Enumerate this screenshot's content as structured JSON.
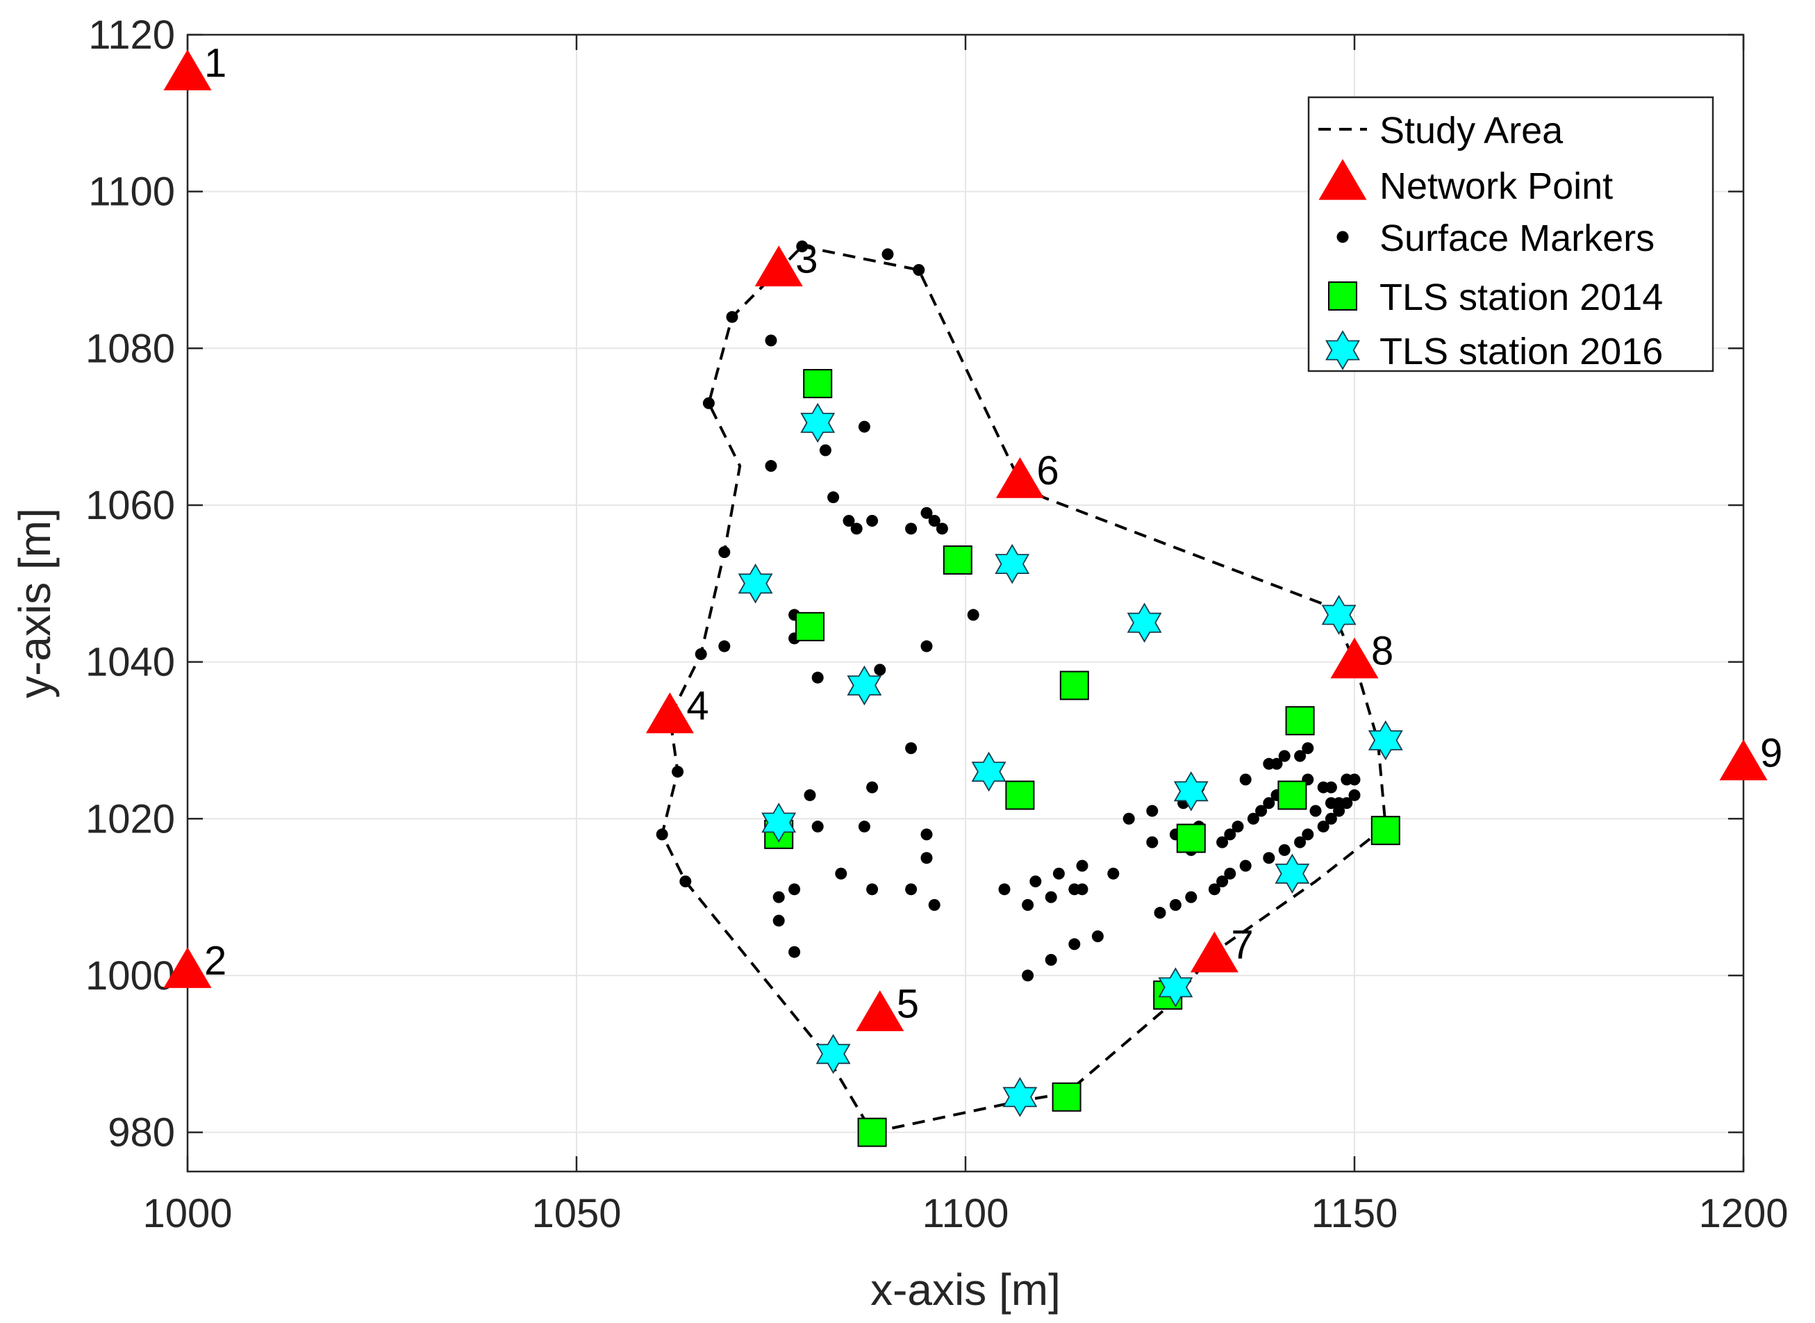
{
  "chart_data": {
    "type": "scatter",
    "title": "",
    "xlabel": "x-axis [m]",
    "ylabel": "y-axis [m]",
    "xlim": [
      1000,
      1200
    ],
    "ylim": [
      975,
      1120
    ],
    "xticks": [
      1000,
      1050,
      1100,
      1150,
      1200
    ],
    "yticks": [
      980,
      1000,
      1020,
      1040,
      1060,
      1080,
      1100,
      1120
    ],
    "grid": true,
    "legend_position": "top-right",
    "legend": [
      "Study Area",
      "Network Point",
      "Surface Markers",
      "TLS station 2014",
      "TLS station 2016"
    ],
    "colors": {
      "network_point": "#ff0000",
      "surface_marker": "#000000",
      "tls_2014": "#00ff00",
      "tls_2016": "#00ffff",
      "study_area": "#000000",
      "grid": "#e6e6e6"
    },
    "series": [
      {
        "name": "Study Area",
        "kind": "dashed-line",
        "points": [
          [
            1079,
            1093
          ],
          [
            1094,
            1090
          ],
          [
            1107,
            1063
          ],
          [
            1110,
            1061
          ],
          [
            1147,
            1047
          ],
          [
            1150,
            1040
          ],
          [
            1153,
            1030
          ],
          [
            1154,
            1019
          ],
          [
            1145,
            1012
          ],
          [
            1132,
            1003
          ],
          [
            1126,
            996
          ],
          [
            1113,
            985
          ],
          [
            1107,
            984
          ],
          [
            1088,
            980
          ],
          [
            1082,
            990
          ],
          [
            1064,
            1012
          ],
          [
            1061,
            1018
          ],
          [
            1063,
            1026
          ],
          [
            1062,
            1033
          ],
          [
            1066,
            1041
          ],
          [
            1069,
            1054
          ],
          [
            1071,
            1065
          ],
          [
            1067,
            1073
          ],
          [
            1070,
            1084
          ],
          [
            1076,
            1090
          ],
          [
            1079,
            1093
          ]
        ]
      },
      {
        "name": "Network Point",
        "kind": "triangle",
        "points": [
          {
            "x": 1000,
            "y": 1115,
            "label": "1"
          },
          {
            "x": 1000,
            "y": 1000.5,
            "label": "2"
          },
          {
            "x": 1076,
            "y": 1090,
            "label": "3"
          },
          {
            "x": 1062,
            "y": 1033,
            "label": "4"
          },
          {
            "x": 1089,
            "y": 995,
            "label": "5"
          },
          {
            "x": 1107,
            "y": 1063,
            "label": "6"
          },
          {
            "x": 1132,
            "y": 1002.5,
            "label": "7"
          },
          {
            "x": 1150,
            "y": 1040,
            "label": "8"
          },
          {
            "x": 1200,
            "y": 1027,
            "label": "9"
          }
        ]
      },
      {
        "name": "Surface Markers",
        "kind": "dot",
        "points": [
          [
            1079,
            1093
          ],
          [
            1090,
            1092
          ],
          [
            1094,
            1090
          ],
          [
            1070,
            1084
          ],
          [
            1075,
            1081
          ],
          [
            1067,
            1073
          ],
          [
            1087,
            1070
          ],
          [
            1082,
            1067
          ],
          [
            1075,
            1065
          ],
          [
            1083,
            1061
          ],
          [
            1085,
            1058
          ],
          [
            1086,
            1057
          ],
          [
            1088,
            1058
          ],
          [
            1095,
            1059
          ],
          [
            1096,
            1058
          ],
          [
            1097,
            1057
          ],
          [
            1093,
            1057
          ],
          [
            1069,
            1054
          ],
          [
            1078,
            1046
          ],
          [
            1101,
            1046
          ],
          [
            1069,
            1042
          ],
          [
            1078,
            1043
          ],
          [
            1095,
            1042
          ],
          [
            1066,
            1041
          ],
          [
            1089,
            1039
          ],
          [
            1081,
            1038
          ],
          [
            1093,
            1029
          ],
          [
            1063,
            1026
          ],
          [
            1088,
            1024
          ],
          [
            1080,
            1023
          ],
          [
            1061,
            1018
          ],
          [
            1081,
            1019
          ],
          [
            1087,
            1019
          ],
          [
            1095,
            1018
          ],
          [
            1095,
            1015
          ],
          [
            1064,
            1012
          ],
          [
            1084,
            1013
          ],
          [
            1076,
            1010
          ],
          [
            1078,
            1011
          ],
          [
            1088,
            1011
          ],
          [
            1093,
            1011
          ],
          [
            1096,
            1009
          ],
          [
            1076,
            1007
          ],
          [
            1078,
            1003
          ],
          [
            1105,
            1011
          ],
          [
            1108,
            1009
          ],
          [
            1109,
            1012
          ],
          [
            1111,
            1010
          ],
          [
            1112,
            1013
          ],
          [
            1114,
            1011
          ],
          [
            1115,
            1011
          ],
          [
            1115,
            1014
          ],
          [
            1119,
            1013
          ],
          [
            1108,
            1000
          ],
          [
            1111,
            1002
          ],
          [
            1114,
            1004
          ],
          [
            1117,
            1005
          ],
          [
            1121,
            1020
          ],
          [
            1124,
            1017
          ],
          [
            1124,
            1021
          ],
          [
            1125,
            1008
          ],
          [
            1127,
            1009
          ],
          [
            1129,
            1010
          ],
          [
            1127,
            1018
          ],
          [
            1128,
            1022
          ],
          [
            1130,
            1024
          ],
          [
            1130,
            1019
          ],
          [
            1132,
            1011
          ],
          [
            1133,
            1012
          ],
          [
            1134,
            1013
          ],
          [
            1136,
            1014
          ],
          [
            1133,
            1017
          ],
          [
            1134,
            1018
          ],
          [
            1135,
            1019
          ],
          [
            1137,
            1020
          ],
          [
            1138,
            1021
          ],
          [
            1136,
            1025
          ],
          [
            1139,
            1027
          ],
          [
            1140,
            1027
          ],
          [
            1141,
            1028
          ],
          [
            1143,
            1028
          ],
          [
            1144,
            1029
          ],
          [
            1139,
            1015
          ],
          [
            1141,
            1016
          ],
          [
            1143,
            1017
          ],
          [
            1144,
            1018
          ],
          [
            1146,
            1019
          ],
          [
            1147,
            1020
          ],
          [
            1148,
            1021
          ],
          [
            1139,
            1022
          ],
          [
            1140,
            1023
          ],
          [
            1142,
            1024
          ],
          [
            1144,
            1025
          ],
          [
            1146,
            1024
          ],
          [
            1147,
            1024
          ],
          [
            1149,
            1025
          ],
          [
            1145,
            1021
          ],
          [
            1147,
            1022
          ],
          [
            1148,
            1022
          ],
          [
            1149,
            1022
          ],
          [
            1150,
            1023
          ],
          [
            1150,
            1025
          ],
          [
            1129,
            1016
          ]
        ]
      },
      {
        "name": "TLS station 2014",
        "kind": "square",
        "points": [
          [
            1081,
            1075.5
          ],
          [
            1099,
            1053
          ],
          [
            1080,
            1044.5
          ],
          [
            1114,
            1037
          ],
          [
            1143,
            1032.5
          ],
          [
            1107,
            1023
          ],
          [
            1142,
            1023
          ],
          [
            1076,
            1018
          ],
          [
            1129,
            1017.5
          ],
          [
            1154,
            1018.5
          ],
          [
            1126,
            997.5
          ],
          [
            1113,
            984.5
          ],
          [
            1088,
            980
          ]
        ]
      },
      {
        "name": "TLS station 2016",
        "kind": "star",
        "points": [
          [
            1081,
            1070.5
          ],
          [
            1106,
            1052.5
          ],
          [
            1073,
            1050
          ],
          [
            1123,
            1045
          ],
          [
            1148,
            1046
          ],
          [
            1087,
            1037
          ],
          [
            1154,
            1030
          ],
          [
            1103,
            1026
          ],
          [
            1129,
            1023.5
          ],
          [
            1076,
            1019.5
          ],
          [
            1142,
            1013
          ],
          [
            1127,
            998.5
          ],
          [
            1083,
            990
          ],
          [
            1107,
            984.5
          ]
        ]
      }
    ]
  }
}
